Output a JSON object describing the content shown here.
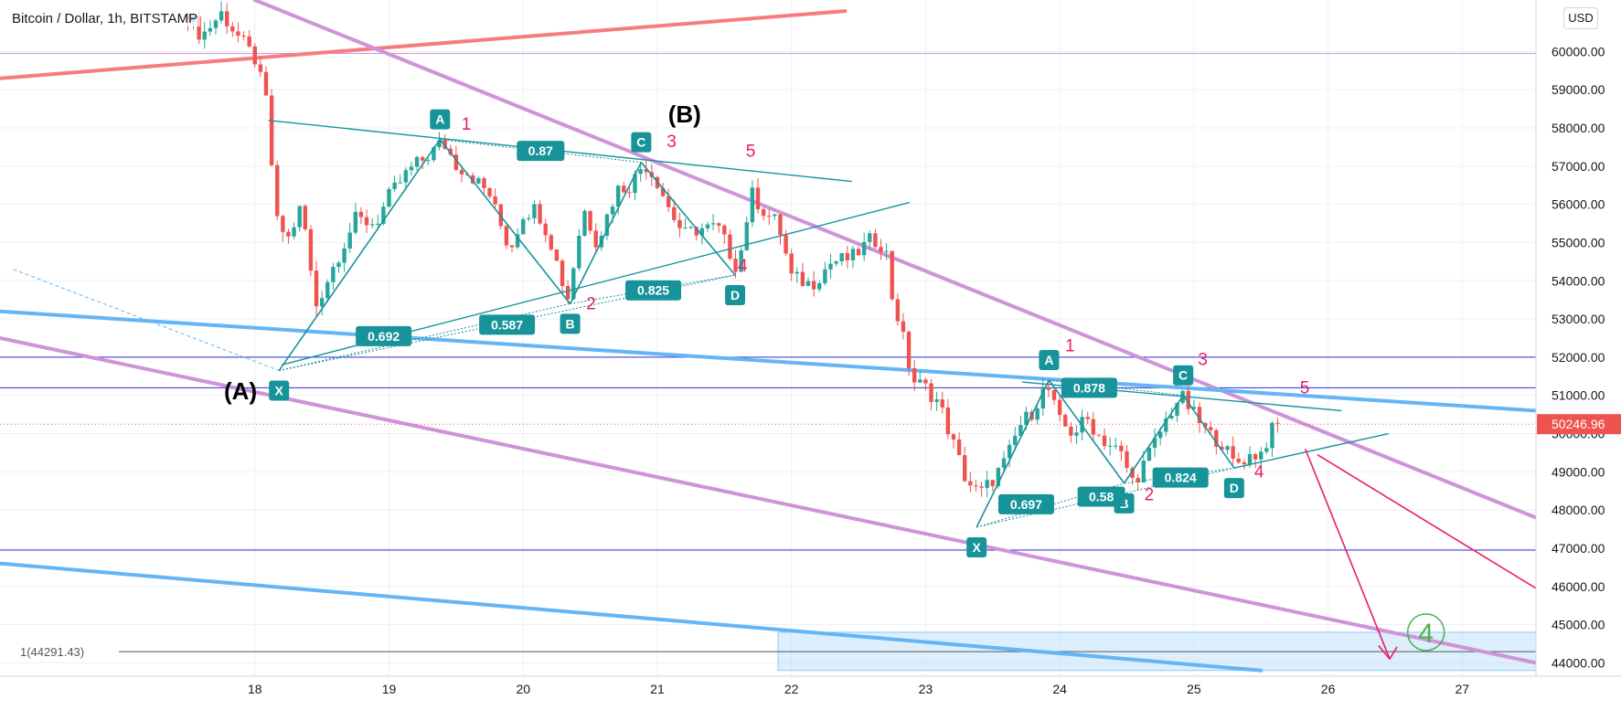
{
  "header": {
    "symbol_title": "Bitcoin / Dollar, 1h, BITSTAMP",
    "currency": "USD"
  },
  "colors": {
    "up": "#26a69a",
    "down": "#ef5350",
    "harmonic": "#17939a",
    "wave_label": "#e91e63",
    "channel_purple": "#ce93d8",
    "channel_blue": "#64b5f6",
    "trend_red": "#f77c80",
    "level_blue": "#2b2fd1",
    "target_green": "#4caf50",
    "price_tag": "#ef5350"
  },
  "chart_data": {
    "type": "candlestick",
    "title": "Bitcoin / Dollar, 1h, BITSTAMP",
    "xlabel": "",
    "ylabel": "",
    "x_ticks": [
      "18",
      "19",
      "20",
      "21",
      "22",
      "23",
      "24",
      "25",
      "26",
      "27"
    ],
    "y_ticks": [
      "44000.00",
      "45000.00",
      "46000.00",
      "47000.00",
      "48000.00",
      "49000.00",
      "50000.00",
      "51000.00",
      "52000.00",
      "53000.00",
      "54000.00",
      "55000.00",
      "56000.00",
      "57000.00",
      "58000.00",
      "59000.00",
      "60000.00"
    ],
    "ylim": [
      43700,
      61200
    ],
    "xlim_days": [
      17.45,
      27.78
    ],
    "last_price": "50246.96",
    "grid": true,
    "candle_path": [
      [
        17.5,
        61000
      ],
      [
        17.6,
        60400
      ],
      [
        17.75,
        61000
      ],
      [
        18.0,
        59800
      ],
      [
        18.1,
        58500
      ],
      [
        18.15,
        55600
      ],
      [
        18.25,
        55100
      ],
      [
        18.35,
        56000
      ],
      [
        18.45,
        53300
      ],
      [
        18.6,
        54500
      ],
      [
        18.75,
        55600
      ],
      [
        18.9,
        55500
      ],
      [
        19.0,
        56200
      ],
      [
        19.15,
        56900
      ],
      [
        19.3,
        57300
      ],
      [
        19.4,
        57650
      ],
      [
        19.5,
        57050
      ],
      [
        19.6,
        56800
      ],
      [
        19.75,
        56250
      ],
      [
        19.9,
        54800
      ],
      [
        20.0,
        55750
      ],
      [
        20.1,
        55900
      ],
      [
        20.2,
        55100
      ],
      [
        20.33,
        53500
      ],
      [
        20.45,
        55900
      ],
      [
        20.55,
        55000
      ],
      [
        20.7,
        56400
      ],
      [
        20.8,
        56500
      ],
      [
        20.9,
        57100
      ],
      [
        21.0,
        56600
      ],
      [
        21.1,
        55800
      ],
      [
        21.2,
        55200
      ],
      [
        21.3,
        55350
      ],
      [
        21.45,
        55400
      ],
      [
        21.6,
        54300
      ],
      [
        21.7,
        56300
      ],
      [
        21.8,
        55800
      ],
      [
        21.9,
        55500
      ],
      [
        22.0,
        54100
      ],
      [
        22.15,
        53900
      ],
      [
        22.3,
        54500
      ],
      [
        22.45,
        54600
      ],
      [
        22.6,
        55100
      ],
      [
        22.7,
        54900
      ],
      [
        22.75,
        53600
      ],
      [
        22.82,
        52700
      ],
      [
        22.9,
        51400
      ],
      [
        23.0,
        51200
      ],
      [
        23.1,
        50800
      ],
      [
        23.2,
        49800
      ],
      [
        23.3,
        48800
      ],
      [
        23.4,
        48400
      ],
      [
        23.5,
        48800
      ],
      [
        23.6,
        49300
      ],
      [
        23.7,
        50200
      ],
      [
        23.8,
        50600
      ],
      [
        23.9,
        51300
      ],
      [
        24.0,
        50300
      ],
      [
        24.1,
        50000
      ],
      [
        24.2,
        50400
      ],
      [
        24.3,
        49900
      ],
      [
        24.45,
        49500
      ],
      [
        24.55,
        48700
      ],
      [
        24.7,
        49700
      ],
      [
        24.8,
        50400
      ],
      [
        24.9,
        51000
      ],
      [
        25.0,
        50500
      ],
      [
        25.1,
        50000
      ],
      [
        25.2,
        49800
      ],
      [
        25.3,
        49200
      ],
      [
        25.4,
        49400
      ],
      [
        25.5,
        49500
      ],
      [
        25.6,
        50200
      ],
      [
        25.65,
        50250
      ]
    ],
    "horizontal_levels": [
      {
        "price": 59950,
        "color": "#ce93d8"
      },
      {
        "price": 52000,
        "color": "#2b2fd1"
      },
      {
        "price": 51200,
        "color": "#2b2fd1"
      },
      {
        "price": 46950,
        "color": "#2b2fd1"
      }
    ],
    "fib_level": {
      "label": "1(44291.43)",
      "price": 44291.43
    },
    "target_zone": {
      "from_day": 21.9,
      "price_top": 44800,
      "price_bottom": 43800
    },
    "harmonic_patterns": [
      {
        "points": [
          {
            "name": "X",
            "day": 18.18,
            "price": 51650,
            "label": "X"
          },
          {
            "name": "A",
            "day": 19.38,
            "price": 57700,
            "label": "A"
          },
          {
            "name": "B",
            "day": 20.35,
            "price": 53400,
            "label": "B"
          },
          {
            "name": "C",
            "day": 20.88,
            "price": 57100,
            "label": "C"
          },
          {
            "name": "D",
            "day": 21.58,
            "price": 54150,
            "label": "D"
          }
        ],
        "ratios": [
          {
            "text": "0.87",
            "day": 20.13,
            "price": 57400
          },
          {
            "text": "0.692",
            "day": 18.96,
            "price": 52550
          },
          {
            "text": "0.587",
            "day": 19.88,
            "price": 52850
          },
          {
            "text": "0.825",
            "day": 20.97,
            "price": 53750
          }
        ]
      },
      {
        "points": [
          {
            "name": "X",
            "day": 23.38,
            "price": 47550,
            "label": "X"
          },
          {
            "name": "A",
            "day": 23.92,
            "price": 51400,
            "label": "A"
          },
          {
            "name": "B",
            "day": 24.48,
            "price": 48700,
            "label": "B"
          },
          {
            "name": "C",
            "day": 24.92,
            "price": 51000,
            "label": "C"
          },
          {
            "name": "D",
            "day": 25.3,
            "price": 49100,
            "label": "D"
          }
        ],
        "ratios": [
          {
            "text": "0.878",
            "day": 24.22,
            "price": 51200
          },
          {
            "text": "0.697",
            "day": 23.75,
            "price": 48150
          },
          {
            "text": "0.58",
            "day": 24.31,
            "price": 48350
          },
          {
            "text": "0.824",
            "day": 24.9,
            "price": 48850
          }
        ]
      }
    ],
    "wave_labels": [
      {
        "text": "1",
        "day": 19.54,
        "price": 57950,
        "color": "#e91e63"
      },
      {
        "text": "2",
        "day": 20.47,
        "price": 53250,
        "color": "#e91e63"
      },
      {
        "text": "3",
        "day": 21.07,
        "price": 57500,
        "color": "#e91e63"
      },
      {
        "text": "4",
        "day": 21.6,
        "price": 54250,
        "color": "#e91e63"
      },
      {
        "text": "5",
        "day": 21.66,
        "price": 57250,
        "color": "#e91e63"
      },
      {
        "text": "(A)",
        "day": 17.77,
        "price": 50900,
        "color": "#000000"
      },
      {
        "text": "(B)",
        "day": 21.08,
        "price": 58150,
        "color": "#000000"
      },
      {
        "text": "1",
        "day": 24.04,
        "price": 52150,
        "color": "#e91e63"
      },
      {
        "text": "2",
        "day": 24.63,
        "price": 48250,
        "color": "#e91e63"
      },
      {
        "text": "3",
        "day": 25.03,
        "price": 51800,
        "color": "#e91e63"
      },
      {
        "text": "4",
        "day": 25.45,
        "price": 48850,
        "color": "#e91e63"
      },
      {
        "text": "5",
        "day": 25.79,
        "price": 51050,
        "color": "#e91e63"
      }
    ],
    "target_label": "4"
  }
}
